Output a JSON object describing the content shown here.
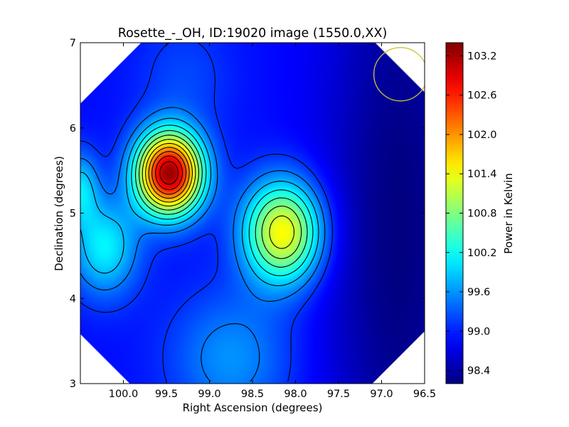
{
  "chart_data": {
    "type": "heatmap",
    "title": "Rosette_-_OH, ID:19020 image (1550.0,XX)",
    "xlabel": "Right Ascension (degrees)",
    "ylabel": "Declination (degrees)",
    "colorbar_label": "Power in Kelvin",
    "xlim": [
      100.5,
      96.5
    ],
    "ylim": [
      3,
      7
    ],
    "xticks": [
      100.0,
      99.5,
      99.0,
      98.5,
      98.0,
      97.5,
      97.0,
      96.5
    ],
    "xtick_labels": [
      "100.0",
      "99.5",
      "99.0",
      "98.5",
      "98.0",
      "97.5",
      "97.0",
      "96.5"
    ],
    "yticks": [
      3,
      4,
      5,
      6,
      7
    ],
    "ytick_labels": [
      "3",
      "4",
      "5",
      "6",
      "7"
    ],
    "colorbar_range": [
      98.2,
      103.4
    ],
    "colorbar_ticks": [
      98.4,
      99.0,
      99.6,
      100.2,
      100.8,
      101.4,
      102.0,
      102.6,
      103.2
    ],
    "colorbar_tick_labels": [
      "98.4",
      "99.0",
      "99.6",
      "100.2",
      "100.8",
      "101.4",
      "102.0",
      "102.6",
      "103.2"
    ],
    "colormap": "jet",
    "background_level": 98.9,
    "peaks": [
      {
        "ra": 99.47,
        "dec": 5.47,
        "amplitude": 4.35,
        "sigma_ra": 0.27,
        "sigma_dec": 0.34
      },
      {
        "ra": 98.15,
        "dec": 4.78,
        "amplitude": 2.6,
        "sigma_ra": 0.32,
        "sigma_dec": 0.42
      },
      {
        "ra": 100.22,
        "dec": 4.6,
        "amplitude": 1.2,
        "sigma_ra": 0.28,
        "sigma_dec": 0.4
      },
      {
        "ra": 100.5,
        "dec": 5.3,
        "amplitude": 1.0,
        "sigma_ra": 0.15,
        "sigma_dec": 0.3
      },
      {
        "ra": 98.75,
        "dec": 3.3,
        "amplitude": 0.7,
        "sigma_ra": 0.5,
        "sigma_dec": 0.55
      },
      {
        "ra": 99.3,
        "dec": 6.6,
        "amplitude": 0.3,
        "sigma_ra": 0.4,
        "sigma_dec": 0.5
      },
      {
        "ra": 96.8,
        "dec": 4.8,
        "amplitude": -0.7,
        "sigma_ra": 0.6,
        "sigma_dec": 3.0
      }
    ],
    "beam_circle": {
      "ra": 96.78,
      "dec": 6.63,
      "radius_deg": 0.31,
      "color": "#c8c830"
    },
    "contour_color": "#000000"
  }
}
